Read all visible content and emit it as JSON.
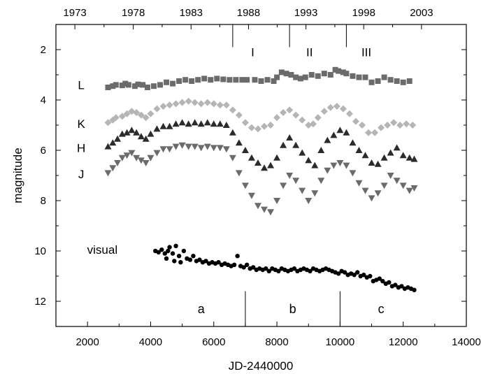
{
  "chart_data": {
    "type": "scatter",
    "xlabel": "JD-2440000",
    "ylabel": "magnitude",
    "xlim": [
      1000,
      14000
    ],
    "ylim": [
      13,
      1
    ],
    "y_inverted": true,
    "x_ticks": [
      2000,
      4000,
      6000,
      8000,
      10000,
      12000,
      14000
    ],
    "y_ticks": [
      2,
      4,
      6,
      8,
      10,
      12
    ],
    "top_axis_ticks": [
      {
        "label": "1973",
        "x": 1600
      },
      {
        "label": "1978",
        "x": 3450
      },
      {
        "label": "1983",
        "x": 5280
      },
      {
        "label": "1988",
        "x": 7100
      },
      {
        "label": "1993",
        "x": 8920
      },
      {
        "label": "1998",
        "x": 10750
      },
      {
        "label": "2003",
        "x": 12580
      }
    ],
    "phase_markers": [
      {
        "label": "I",
        "x_start": 6600,
        "x_end": 8400
      },
      {
        "label": "II",
        "x_start": 8400,
        "x_end": 10200
      },
      {
        "label": "III",
        "x_start": 10200,
        "x_end": 12000
      }
    ],
    "segment_markers": [
      {
        "label": "a",
        "x_start": 1000,
        "x_end": 7000
      },
      {
        "label": "b",
        "x_start": 7000,
        "x_end": 10000
      },
      {
        "label": "c",
        "x_start": 10000,
        "x_end": 14000
      }
    ],
    "series": [
      {
        "name": "L",
        "marker": "square",
        "color": "#6b6b6b",
        "points": [
          [
            2650,
            3.5
          ],
          [
            2800,
            3.45
          ],
          [
            2900,
            3.4
          ],
          [
            3100,
            3.42
          ],
          [
            3200,
            3.35
          ],
          [
            3300,
            3.4
          ],
          [
            3500,
            3.45
          ],
          [
            3600,
            3.38
          ],
          [
            3750,
            3.4
          ],
          [
            3900,
            3.5
          ],
          [
            4100,
            3.45
          ],
          [
            4300,
            3.4
          ],
          [
            4500,
            3.3
          ],
          [
            4700,
            3.35
          ],
          [
            4900,
            3.25
          ],
          [
            5100,
            3.2
          ],
          [
            5300,
            3.25
          ],
          [
            5500,
            3.2
          ],
          [
            5700,
            3.15
          ],
          [
            5900,
            3.2
          ],
          [
            6100,
            3.15
          ],
          [
            6300,
            3.18
          ],
          [
            6500,
            3.2
          ],
          [
            6700,
            3.2
          ],
          [
            6900,
            3.2
          ],
          [
            7050,
            3.2
          ],
          [
            7300,
            3.2
          ],
          [
            7500,
            3.25
          ],
          [
            7700,
            3.2
          ],
          [
            7900,
            3.25
          ],
          [
            8000,
            3.1
          ],
          [
            8150,
            2.9
          ],
          [
            8300,
            2.95
          ],
          [
            8450,
            3.0
          ],
          [
            8600,
            3.1
          ],
          [
            8750,
            3.15
          ],
          [
            8900,
            3.1
          ],
          [
            9100,
            3.0
          ],
          [
            9300,
            3.05
          ],
          [
            9500,
            2.95
          ],
          [
            9700,
            3.0
          ],
          [
            9850,
            2.8
          ],
          [
            9950,
            2.85
          ],
          [
            10100,
            2.9
          ],
          [
            10200,
            2.95
          ],
          [
            10400,
            3.05
          ],
          [
            10600,
            3.1
          ],
          [
            10800,
            3.1
          ],
          [
            11000,
            3.3
          ],
          [
            11200,
            3.25
          ],
          [
            11400,
            3.1
          ],
          [
            11600,
            3.2
          ],
          [
            11800,
            3.25
          ],
          [
            12000,
            3.3
          ],
          [
            12200,
            3.25
          ]
        ]
      },
      {
        "name": "K",
        "marker": "diamond",
        "color": "#b5b5b5",
        "points": [
          [
            2650,
            4.9
          ],
          [
            2800,
            4.8
          ],
          [
            2900,
            4.7
          ],
          [
            3100,
            4.65
          ],
          [
            3250,
            4.55
          ],
          [
            3400,
            4.45
          ],
          [
            3550,
            4.5
          ],
          [
            3700,
            4.6
          ],
          [
            3850,
            4.7
          ],
          [
            4000,
            4.55
          ],
          [
            4200,
            4.35
          ],
          [
            4400,
            4.25
          ],
          [
            4600,
            4.2
          ],
          [
            4800,
            4.15
          ],
          [
            5000,
            4.1
          ],
          [
            5200,
            4.05
          ],
          [
            5400,
            4.1
          ],
          [
            5600,
            4.15
          ],
          [
            5800,
            4.1
          ],
          [
            6000,
            4.15
          ],
          [
            6200,
            4.2
          ],
          [
            6400,
            4.2
          ],
          [
            6600,
            4.4
          ],
          [
            6800,
            4.6
          ],
          [
            7000,
            4.9
          ],
          [
            7200,
            5.1
          ],
          [
            7400,
            5.15
          ],
          [
            7600,
            5.05
          ],
          [
            7800,
            5.0
          ],
          [
            8000,
            4.7
          ],
          [
            8200,
            4.5
          ],
          [
            8400,
            4.4
          ],
          [
            8600,
            4.6
          ],
          [
            8800,
            4.8
          ],
          [
            9000,
            5.0
          ],
          [
            9150,
            4.95
          ],
          [
            9300,
            4.7
          ],
          [
            9500,
            4.45
          ],
          [
            9700,
            4.3
          ],
          [
            9900,
            4.25
          ],
          [
            10100,
            4.35
          ],
          [
            10300,
            4.55
          ],
          [
            10500,
            4.85
          ],
          [
            10700,
            5.0
          ],
          [
            10900,
            5.3
          ],
          [
            11100,
            5.3
          ],
          [
            11300,
            5.1
          ],
          [
            11500,
            5.0
          ],
          [
            11700,
            4.9
          ],
          [
            11900,
            5.0
          ],
          [
            12100,
            4.95
          ],
          [
            12300,
            5.0
          ]
        ]
      },
      {
        "name": "H",
        "marker": "triangle-up",
        "color": "#2b2b2b",
        "points": [
          [
            2650,
            5.85
          ],
          [
            2800,
            5.7
          ],
          [
            2950,
            5.55
          ],
          [
            3100,
            5.35
          ],
          [
            3250,
            5.3
          ],
          [
            3400,
            5.2
          ],
          [
            3550,
            5.3
          ],
          [
            3700,
            5.45
          ],
          [
            3850,
            5.55
          ],
          [
            4000,
            5.35
          ],
          [
            4200,
            5.15
          ],
          [
            4400,
            5.05
          ],
          [
            4600,
            5.05
          ],
          [
            4800,
            4.95
          ],
          [
            5000,
            4.9
          ],
          [
            5200,
            4.95
          ],
          [
            5400,
            4.9
          ],
          [
            5600,
            4.95
          ],
          [
            5800,
            4.9
          ],
          [
            6000,
            4.95
          ],
          [
            6200,
            4.95
          ],
          [
            6400,
            5.0
          ],
          [
            6600,
            5.3
          ],
          [
            6800,
            5.7
          ],
          [
            7000,
            6.0
          ],
          [
            7200,
            6.3
          ],
          [
            7400,
            6.5
          ],
          [
            7600,
            6.7
          ],
          [
            7800,
            6.6
          ],
          [
            8000,
            6.3
          ],
          [
            8200,
            5.8
          ],
          [
            8400,
            5.5
          ],
          [
            8600,
            5.8
          ],
          [
            8800,
            6.1
          ],
          [
            9000,
            6.4
          ],
          [
            9200,
            6.6
          ],
          [
            9400,
            6.0
          ],
          [
            9600,
            5.6
          ],
          [
            9800,
            5.4
          ],
          [
            10000,
            5.2
          ],
          [
            10200,
            5.3
          ],
          [
            10400,
            5.7
          ],
          [
            10600,
            6.0
          ],
          [
            10800,
            6.2
          ],
          [
            11000,
            6.5
          ],
          [
            11200,
            6.55
          ],
          [
            11400,
            6.3
          ],
          [
            11600,
            6.1
          ],
          [
            11800,
            5.9
          ],
          [
            12000,
            6.2
          ],
          [
            12200,
            6.3
          ],
          [
            12350,
            6.35
          ]
        ]
      },
      {
        "name": "J",
        "marker": "triangle-down",
        "color": "#6b6b6b",
        "points": [
          [
            2650,
            6.9
          ],
          [
            2800,
            6.7
          ],
          [
            2950,
            6.5
          ],
          [
            3100,
            6.3
          ],
          [
            3250,
            6.2
          ],
          [
            3400,
            6.1
          ],
          [
            3550,
            6.3
          ],
          [
            3700,
            6.4
          ],
          [
            3850,
            6.5
          ],
          [
            4000,
            6.3
          ],
          [
            4200,
            6.1
          ],
          [
            4400,
            5.95
          ],
          [
            4600,
            5.95
          ],
          [
            4800,
            5.85
          ],
          [
            5000,
            5.8
          ],
          [
            5200,
            5.85
          ],
          [
            5400,
            5.85
          ],
          [
            5600,
            5.9
          ],
          [
            5800,
            5.85
          ],
          [
            6000,
            5.9
          ],
          [
            6200,
            5.9
          ],
          [
            6400,
            5.95
          ],
          [
            6600,
            6.3
          ],
          [
            6800,
            6.9
          ],
          [
            7000,
            7.4
          ],
          [
            7200,
            7.8
          ],
          [
            7400,
            8.2
          ],
          [
            7600,
            8.35
          ],
          [
            7800,
            8.45
          ],
          [
            8000,
            8.0
          ],
          [
            8200,
            7.4
          ],
          [
            8400,
            7.0
          ],
          [
            8600,
            7.2
          ],
          [
            8800,
            7.6
          ],
          [
            9000,
            8.0
          ],
          [
            9200,
            7.7
          ],
          [
            9400,
            7.2
          ],
          [
            9600,
            6.8
          ],
          [
            9800,
            6.6
          ],
          [
            10000,
            6.5
          ],
          [
            10200,
            6.6
          ],
          [
            10400,
            6.9
          ],
          [
            10600,
            7.3
          ],
          [
            10800,
            7.6
          ],
          [
            11000,
            7.9
          ],
          [
            11200,
            7.7
          ],
          [
            11400,
            7.4
          ],
          [
            11600,
            7.0
          ],
          [
            11800,
            7.2
          ],
          [
            12000,
            7.4
          ],
          [
            12200,
            7.6
          ],
          [
            12350,
            7.5
          ]
        ]
      },
      {
        "name": "visual",
        "marker": "circle",
        "color": "#000000",
        "points": [
          [
            4150,
            10.0
          ],
          [
            4250,
            10.05
          ],
          [
            4350,
            9.95
          ],
          [
            4450,
            10.1
          ],
          [
            4500,
            10.3
          ],
          [
            4550,
            10.0
          ],
          [
            4600,
            9.85
          ],
          [
            4700,
            10.1
          ],
          [
            4750,
            10.4
          ],
          [
            4800,
            9.8
          ],
          [
            4900,
            10.2
          ],
          [
            4950,
            10.45
          ],
          [
            5050,
            10.0
          ],
          [
            5150,
            10.3
          ],
          [
            5250,
            10.35
          ],
          [
            5350,
            10.2
          ],
          [
            5450,
            10.4
          ],
          [
            5550,
            10.35
          ],
          [
            5650,
            10.45
          ],
          [
            5750,
            10.4
          ],
          [
            5850,
            10.5
          ],
          [
            5950,
            10.45
          ],
          [
            6050,
            10.5
          ],
          [
            6150,
            10.45
          ],
          [
            6250,
            10.55
          ],
          [
            6350,
            10.5
          ],
          [
            6450,
            10.55
          ],
          [
            6550,
            10.6
          ],
          [
            6650,
            10.55
          ],
          [
            6750,
            10.2
          ],
          [
            6850,
            10.6
          ],
          [
            6950,
            10.65
          ],
          [
            7050,
            10.55
          ],
          [
            7150,
            10.7
          ],
          [
            7250,
            10.65
          ],
          [
            7350,
            10.75
          ],
          [
            7450,
            10.7
          ],
          [
            7550,
            10.75
          ],
          [
            7650,
            10.7
          ],
          [
            7750,
            10.8
          ],
          [
            7850,
            10.7
          ],
          [
            7950,
            10.75
          ],
          [
            8050,
            10.8
          ],
          [
            8150,
            10.7
          ],
          [
            8250,
            10.75
          ],
          [
            8350,
            10.8
          ],
          [
            8450,
            10.75
          ],
          [
            8550,
            10.7
          ],
          [
            8650,
            10.8
          ],
          [
            8750,
            10.75
          ],
          [
            8850,
            10.7
          ],
          [
            8950,
            10.75
          ],
          [
            9050,
            10.8
          ],
          [
            9150,
            10.7
          ],
          [
            9250,
            10.75
          ],
          [
            9350,
            10.8
          ],
          [
            9450,
            10.75
          ],
          [
            9550,
            10.7
          ],
          [
            9650,
            10.75
          ],
          [
            9750,
            10.8
          ],
          [
            9850,
            10.85
          ],
          [
            9950,
            10.9
          ],
          [
            10050,
            10.8
          ],
          [
            10150,
            10.85
          ],
          [
            10250,
            10.95
          ],
          [
            10350,
            10.9
          ],
          [
            10450,
            10.95
          ],
          [
            10550,
            10.85
          ],
          [
            10650,
            11.0
          ],
          [
            10750,
            10.95
          ],
          [
            10850,
            11.05
          ],
          [
            10950,
            11.0
          ],
          [
            11050,
            11.2
          ],
          [
            11150,
            11.15
          ],
          [
            11250,
            11.1
          ],
          [
            11350,
            11.2
          ],
          [
            11450,
            11.3
          ],
          [
            11550,
            11.25
          ],
          [
            11650,
            11.4
          ],
          [
            11750,
            11.35
          ],
          [
            11850,
            11.45
          ],
          [
            11950,
            11.4
          ],
          [
            12050,
            11.5
          ],
          [
            12150,
            11.45
          ],
          [
            12250,
            11.5
          ],
          [
            12350,
            11.55
          ]
        ]
      }
    ]
  }
}
